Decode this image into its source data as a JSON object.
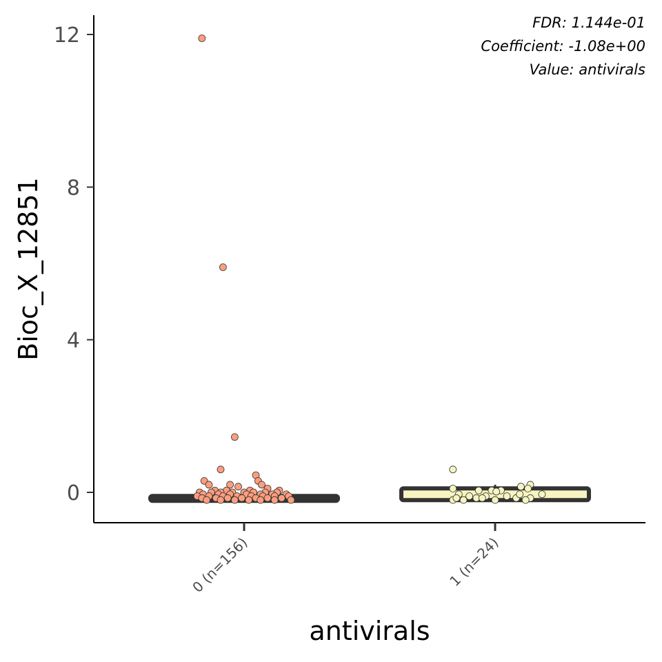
{
  "chart_data": {
    "type": "box",
    "xlabel": "antivirals",
    "ylabel": "Bioc_X_12851",
    "ylim": [
      -0.8,
      12.5
    ],
    "yticks": [
      0,
      4,
      8,
      12
    ],
    "grid": false,
    "annotations": [
      "FDR: 1.144e-01",
      "Coefficient: -1.08e+00",
      "Value: antivirals"
    ],
    "colors": {
      "group0_fill": "#fc9e7e",
      "group1_fill": "#f6f4c0",
      "box_stroke": "#333333",
      "point_stroke": "#333333",
      "axis": "#000000"
    },
    "groups": [
      {
        "label": "0 (n=156)",
        "box": {
          "whisker_low": -0.15,
          "q1": -0.15,
          "median": -0.15,
          "q3": -0.15,
          "whisker_high": -0.15
        },
        "points": [
          [
            -0.36,
            11.9
          ],
          [
            -0.18,
            5.9
          ],
          [
            -0.08,
            1.45
          ],
          [
            -0.2,
            0.6
          ],
          [
            0.1,
            0.45
          ],
          [
            0.12,
            0.3
          ],
          [
            -0.34,
            0.3
          ],
          [
            -0.3,
            0.2
          ],
          [
            -0.12,
            0.2
          ],
          [
            0.15,
            0.2
          ],
          [
            -0.05,
            0.15
          ],
          [
            0.2,
            0.1
          ],
          [
            -0.25,
            0.05
          ],
          [
            -0.15,
            0.05
          ],
          [
            0.05,
            0.05
          ],
          [
            0.3,
            0.05
          ],
          [
            -0.38,
            0.0
          ],
          [
            -0.28,
            0.0
          ],
          [
            -0.2,
            0.0
          ],
          [
            -0.1,
            0.0
          ],
          [
            0.0,
            0.0
          ],
          [
            0.08,
            0.0
          ],
          [
            0.18,
            0.0
          ],
          [
            0.28,
            0.0
          ],
          [
            -0.35,
            -0.05
          ],
          [
            -0.22,
            -0.05
          ],
          [
            -0.12,
            -0.05
          ],
          [
            0.02,
            -0.05
          ],
          [
            0.14,
            -0.05
          ],
          [
            0.24,
            -0.05
          ],
          [
            0.36,
            -0.05
          ],
          [
            -0.4,
            -0.1
          ],
          [
            -0.3,
            -0.1
          ],
          [
            -0.18,
            -0.1
          ],
          [
            -0.06,
            -0.1
          ],
          [
            0.06,
            -0.1
          ],
          [
            0.16,
            -0.1
          ],
          [
            0.26,
            -0.1
          ],
          [
            0.38,
            -0.1
          ],
          [
            -0.36,
            -0.15
          ],
          [
            -0.24,
            -0.15
          ],
          [
            -0.14,
            -0.15
          ],
          [
            -0.02,
            -0.15
          ],
          [
            0.1,
            -0.15
          ],
          [
            0.2,
            -0.15
          ],
          [
            0.32,
            -0.15
          ],
          [
            -0.32,
            -0.2
          ],
          [
            -0.2,
            -0.2
          ],
          [
            -0.08,
            -0.2
          ],
          [
            0.04,
            -0.2
          ],
          [
            0.14,
            -0.2
          ],
          [
            0.26,
            -0.2
          ],
          [
            0.4,
            -0.2
          ]
        ]
      },
      {
        "label": "1 (n=24)",
        "box": {
          "whisker_low": -0.15,
          "q1": -0.15,
          "median": 0.0,
          "q3": 0.05,
          "whisker_high": 0.2
        },
        "points": [
          [
            -0.36,
            0.6
          ],
          [
            -0.36,
            0.1
          ],
          [
            0.3,
            0.2
          ],
          [
            0.22,
            0.15
          ],
          [
            0.28,
            0.1
          ],
          [
            0.05,
            0.05
          ],
          [
            -0.14,
            0.05
          ],
          [
            -0.03,
            0.05
          ],
          [
            0.01,
            0.02
          ],
          [
            -0.31,
            -0.05
          ],
          [
            -0.22,
            -0.1
          ],
          [
            0.4,
            -0.05
          ],
          [
            0.1,
            -0.1
          ],
          [
            -0.16,
            -0.15
          ],
          [
            0.3,
            -0.15
          ],
          [
            0.18,
            -0.15
          ],
          [
            -0.27,
            -0.2
          ],
          [
            -0.36,
            -0.2
          ],
          [
            -0.33,
            -0.15
          ],
          [
            0.0,
            -0.2
          ],
          [
            0.26,
            -0.2
          ],
          [
            -0.08,
            -0.1
          ],
          [
            0.21,
            -0.05
          ],
          [
            -0.11,
            -0.15
          ]
        ]
      }
    ]
  }
}
